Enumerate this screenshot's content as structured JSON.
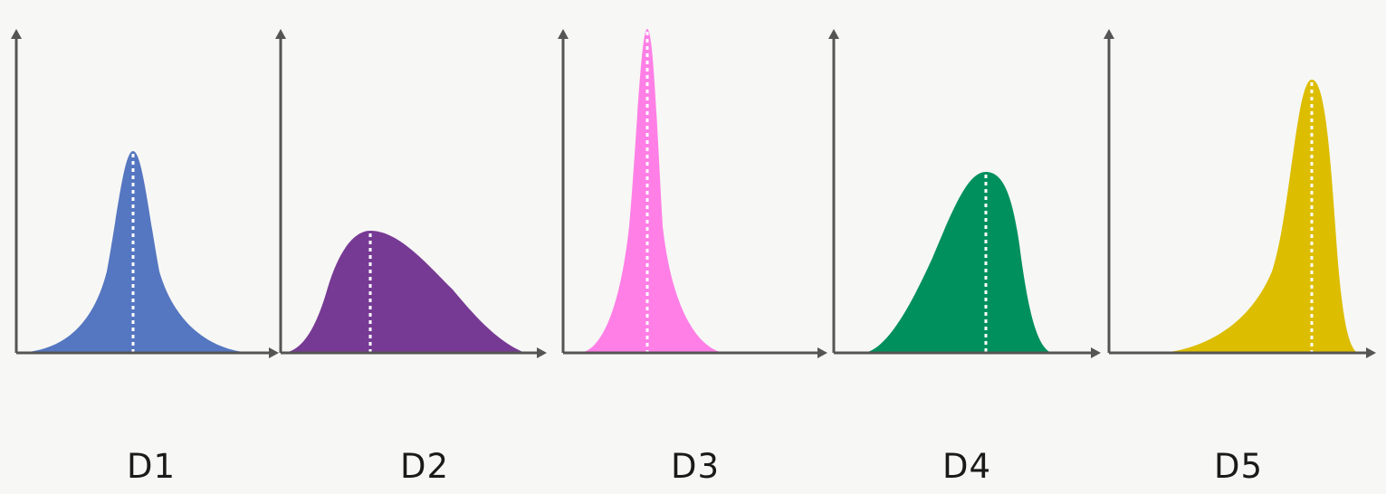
{
  "panels": [
    {
      "label": "D1",
      "color": "#5576c0",
      "shape": "symmetric, sharply peaked",
      "relative_peak_height": 0.63
    },
    {
      "label": "D2",
      "color": "#773a94",
      "shape": "right-skewed, broad",
      "relative_peak_height": 0.38
    },
    {
      "label": "D3",
      "color": "#ff7fe6",
      "shape": "very tall and narrow, slight right skew",
      "relative_peak_height": 1.0
    },
    {
      "label": "D4",
      "color": "#00905e",
      "shape": "left-skewed, moderate",
      "relative_peak_height": 0.57
    },
    {
      "label": "D5",
      "color": "#dcbd00",
      "shape": "strongly left-skewed, tall",
      "relative_peak_height": 0.85
    }
  ],
  "mean_line": {
    "style": "dotted",
    "color": "#ffffff"
  },
  "axis_color": "#555555"
}
